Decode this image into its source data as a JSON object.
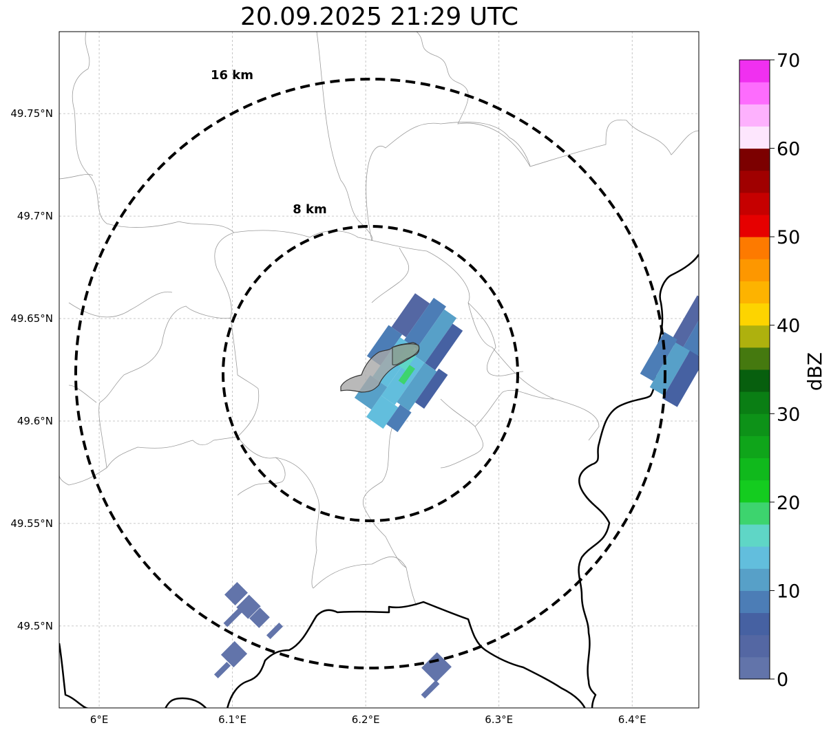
{
  "title": "20.09.2025 21:29 UTC",
  "map": {
    "lon_range": [
      5.97,
      6.45
    ],
    "lat_range": [
      49.46,
      49.79
    ],
    "lon_ticks": [
      {
        "value": 6.0,
        "label": "6°E"
      },
      {
        "value": 6.1,
        "label": "6.1°E"
      },
      {
        "value": 6.2,
        "label": "6.2°E"
      },
      {
        "value": 6.3,
        "label": "6.3°E"
      },
      {
        "value": 6.4,
        "label": "6.4°E"
      }
    ],
    "lat_ticks": [
      {
        "value": 49.5,
        "label": "49.5°N"
      },
      {
        "value": 49.55,
        "label": "49.55°N"
      },
      {
        "value": 49.6,
        "label": "49.6°N"
      },
      {
        "value": 49.65,
        "label": "49.65°N"
      },
      {
        "value": 49.7,
        "label": "49.7°N"
      },
      {
        "value": 49.75,
        "label": "49.75°N"
      }
    ],
    "gridlines": true,
    "range_rings": [
      {
        "label": "8 km",
        "radius_km": 8
      },
      {
        "label": "16 km",
        "radius_km": 16
      }
    ],
    "radar_center": {
      "lon": 6.2,
      "lat": 49.623
    }
  },
  "colorbar": {
    "label": "dBZ",
    "min": 0,
    "max": 70,
    "tick_labels": [
      "0",
      "10",
      "20",
      "30",
      "40",
      "50",
      "60",
      "70"
    ],
    "colors": [
      "#6274aa",
      "#5467a3",
      "#4661a2",
      "#4c7db6",
      "#57a0c8",
      "#62bedd",
      "#5fd6c6",
      "#3dd46e",
      "#14cc1f",
      "#10b91c",
      "#0fa51a",
      "#0d9218",
      "#0a7e14",
      "#075f0e",
      "#45790f",
      "#aeb10e",
      "#fdd400",
      "#fdb300",
      "#fd9700",
      "#fd7a00",
      "#e60000",
      "#c60000",
      "#a00000",
      "#7c0000",
      "#fde6fd",
      "#fdb1fd",
      "#fd6cfd",
      "#f030f0"
    ]
  }
}
